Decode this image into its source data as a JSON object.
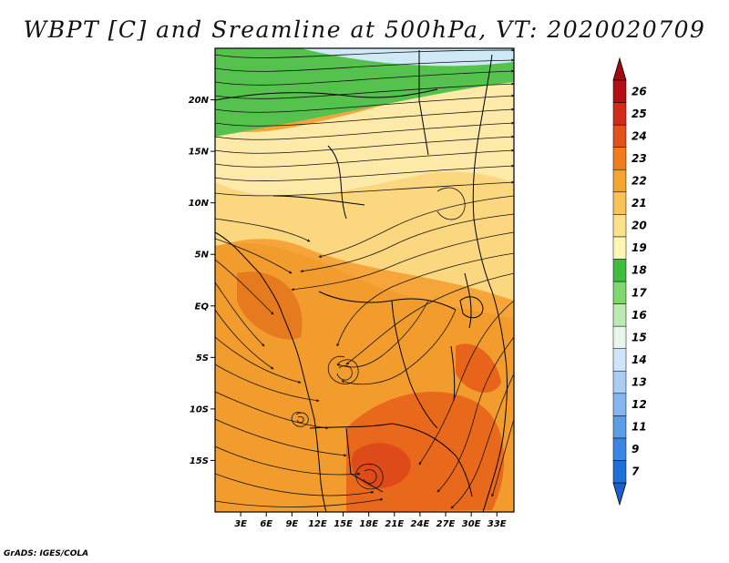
{
  "title": "WBPT [C] and Sreamline at 500hPa, VT: 2020020709",
  "credit": "GrADS: IGES/COLA",
  "map": {
    "lon_range": [
      0,
      35
    ],
    "lat_range": [
      -20,
      25
    ],
    "lat_ticks": [
      "20N",
      "15N",
      "10N",
      "5N",
      "EQ",
      "5S",
      "10S",
      "15S"
    ],
    "lat_values": [
      20,
      15,
      10,
      5,
      0,
      -5,
      -10,
      -15
    ],
    "lon_ticks": [
      "3E",
      "6E",
      "9E",
      "12E",
      "15E",
      "18E",
      "21E",
      "24E",
      "27E",
      "30E",
      "33E"
    ],
    "lon_values": [
      3,
      6,
      9,
      12,
      15,
      18,
      21,
      24,
      27,
      30,
      33
    ]
  },
  "colorbar": {
    "labels": [
      "7",
      "9",
      "11",
      "12",
      "13",
      "14",
      "15",
      "16",
      "17",
      "18",
      "19",
      "20",
      "21",
      "22",
      "23",
      "24",
      "25",
      "26"
    ],
    "colors": [
      "#1e6fd9",
      "#3a86e6",
      "#5c9de8",
      "#84b6ef",
      "#a9cdf4",
      "#cfe4f8",
      "#e8f6ee",
      "#bdeab2",
      "#7fd86e",
      "#3fbd3d",
      "#fdf6b4",
      "#fbe28a",
      "#f8c45a",
      "#f5a430",
      "#ef7d1e",
      "#e4521b",
      "#d22b18",
      "#b30f12"
    ],
    "bottom_arrow_color": "#1a5fd0",
    "top_arrow_color": "#a00a10"
  }
}
